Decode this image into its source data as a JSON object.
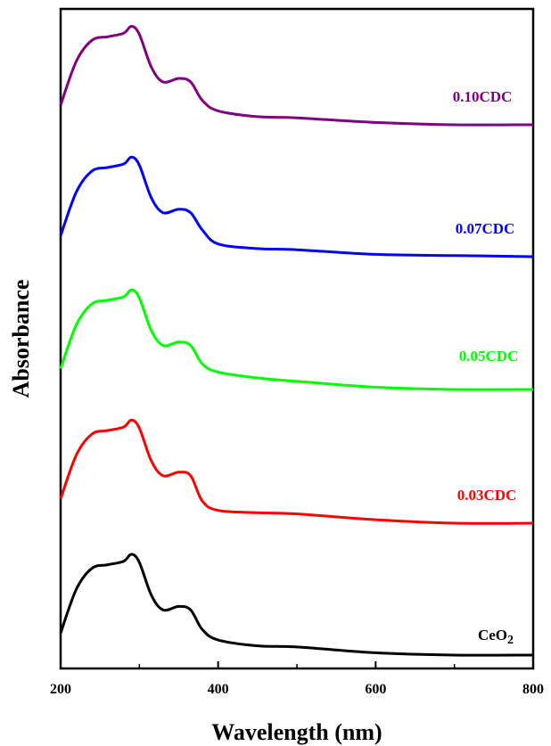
{
  "chart_data": {
    "type": "line",
    "title": "",
    "xlabel": "Wavelength (nm)",
    "ylabel": "Absorbance",
    "xlim": [
      200,
      800
    ],
    "xticks": [
      200,
      400,
      600,
      800
    ],
    "y_ticks_shown": false,
    "grid": false,
    "legend": "none; series labelled inline at right end of each curve",
    "stacked_offset": true,
    "x": [
      200,
      220,
      240,
      260,
      280,
      290,
      300,
      315,
      330,
      350,
      365,
      380,
      400,
      450,
      500,
      600,
      700,
      800
    ],
    "series": [
      {
        "name": "CeO2",
        "label_main": "CeO",
        "label_sub": "2",
        "color": "#000000",
        "values": [
          0.14,
          0.52,
          0.7,
          0.73,
          0.76,
          0.82,
          0.75,
          0.47,
          0.34,
          0.37,
          0.34,
          0.17,
          0.08,
          0.03,
          0.02,
          -0.03,
          -0.05,
          -0.05
        ]
      },
      {
        "name": "0.03CDC",
        "color": "#ff0000",
        "values": [
          0.14,
          0.52,
          0.7,
          0.73,
          0.76,
          0.82,
          0.75,
          0.47,
          0.34,
          0.37,
          0.34,
          0.12,
          0.04,
          0.02,
          0.01,
          -0.04,
          -0.07,
          -0.07
        ]
      },
      {
        "name": "0.05CDC",
        "color": "#00ff00",
        "values": [
          0.14,
          0.52,
          0.7,
          0.73,
          0.76,
          0.82,
          0.75,
          0.47,
          0.34,
          0.37,
          0.34,
          0.18,
          0.11,
          0.06,
          0.03,
          -0.02,
          -0.04,
          -0.04
        ]
      },
      {
        "name": "0.07CDC",
        "color": "#0000ff",
        "values": [
          0.14,
          0.52,
          0.7,
          0.73,
          0.76,
          0.82,
          0.75,
          0.47,
          0.34,
          0.37,
          0.34,
          0.19,
          0.07,
          0.03,
          0.02,
          -0.02,
          -0.03,
          -0.04
        ]
      },
      {
        "name": "0.10CDC",
        "color": "#800080",
        "values": [
          0.14,
          0.52,
          0.7,
          0.73,
          0.76,
          0.82,
          0.75,
          0.47,
          0.34,
          0.37,
          0.34,
          0.18,
          0.09,
          0.04,
          0.03,
          -0.01,
          -0.03,
          -0.03
        ]
      }
    ]
  }
}
